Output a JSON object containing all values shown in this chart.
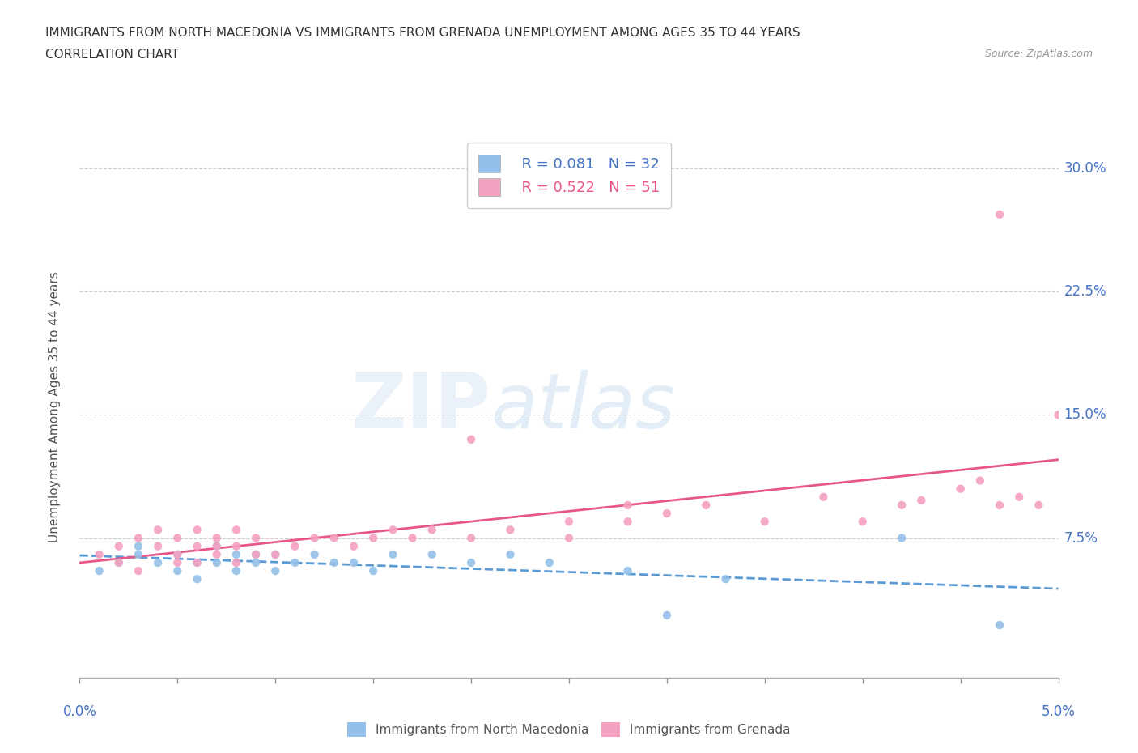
{
  "title_line1": "IMMIGRANTS FROM NORTH MACEDONIA VS IMMIGRANTS FROM GRENADA UNEMPLOYMENT AMONG AGES 35 TO 44 YEARS",
  "title_line2": "CORRELATION CHART",
  "source_text": "Source: ZipAtlas.com",
  "ylabel": "Unemployment Among Ages 35 to 44 years",
  "xlim": [
    0.0,
    0.05
  ],
  "ylim": [
    -0.01,
    0.32
  ],
  "ytick_labels": [
    "7.5%",
    "15.0%",
    "22.5%",
    "30.0%"
  ],
  "ytick_values": [
    0.075,
    0.15,
    0.225,
    0.3
  ],
  "color_blue": "#92C0E8",
  "color_pink": "#F4A0C0",
  "line_blue": "#5B9BD5",
  "line_pink": "#E8558A",
  "text_blue": "#4472C4",
  "text_pink": "#E8558A",
  "legend_blue_R": "R = 0.081",
  "legend_blue_N": "N = 32",
  "legend_pink_R": "R = 0.522",
  "legend_pink_N": "N = 51",
  "watermark_zip": "ZIP",
  "watermark_atlas": "atlas",
  "north_macedonia_x": [
    0.001,
    0.002,
    0.003,
    0.003,
    0.004,
    0.005,
    0.005,
    0.006,
    0.006,
    0.007,
    0.007,
    0.008,
    0.008,
    0.009,
    0.009,
    0.01,
    0.01,
    0.011,
    0.012,
    0.013,
    0.014,
    0.015,
    0.016,
    0.018,
    0.02,
    0.022,
    0.024,
    0.028,
    0.03,
    0.033,
    0.042,
    0.047
  ],
  "north_macedonia_y": [
    0.055,
    0.06,
    0.065,
    0.07,
    0.06,
    0.055,
    0.065,
    0.05,
    0.06,
    0.06,
    0.07,
    0.055,
    0.065,
    0.06,
    0.065,
    0.055,
    0.065,
    0.06,
    0.065,
    0.06,
    0.06,
    0.055,
    0.065,
    0.065,
    0.06,
    0.065,
    0.06,
    0.055,
    0.028,
    0.05,
    0.075,
    0.022
  ],
  "grenada_x": [
    0.001,
    0.002,
    0.002,
    0.003,
    0.003,
    0.004,
    0.004,
    0.005,
    0.005,
    0.005,
    0.006,
    0.006,
    0.006,
    0.007,
    0.007,
    0.007,
    0.008,
    0.008,
    0.008,
    0.009,
    0.009,
    0.01,
    0.011,
    0.012,
    0.013,
    0.014,
    0.015,
    0.016,
    0.017,
    0.018,
    0.02,
    0.02,
    0.022,
    0.025,
    0.025,
    0.028,
    0.028,
    0.03,
    0.032,
    0.035,
    0.038,
    0.04,
    0.042,
    0.043,
    0.045,
    0.046,
    0.047,
    0.048,
    0.049,
    0.05,
    0.047
  ],
  "grenada_y": [
    0.065,
    0.06,
    0.07,
    0.055,
    0.075,
    0.07,
    0.08,
    0.06,
    0.065,
    0.075,
    0.06,
    0.07,
    0.08,
    0.065,
    0.07,
    0.075,
    0.06,
    0.07,
    0.08,
    0.065,
    0.075,
    0.065,
    0.07,
    0.075,
    0.075,
    0.07,
    0.075,
    0.08,
    0.075,
    0.08,
    0.075,
    0.135,
    0.08,
    0.075,
    0.085,
    0.085,
    0.095,
    0.09,
    0.095,
    0.085,
    0.1,
    0.085,
    0.095,
    0.098,
    0.105,
    0.11,
    0.095,
    0.1,
    0.095,
    0.15,
    0.272
  ]
}
